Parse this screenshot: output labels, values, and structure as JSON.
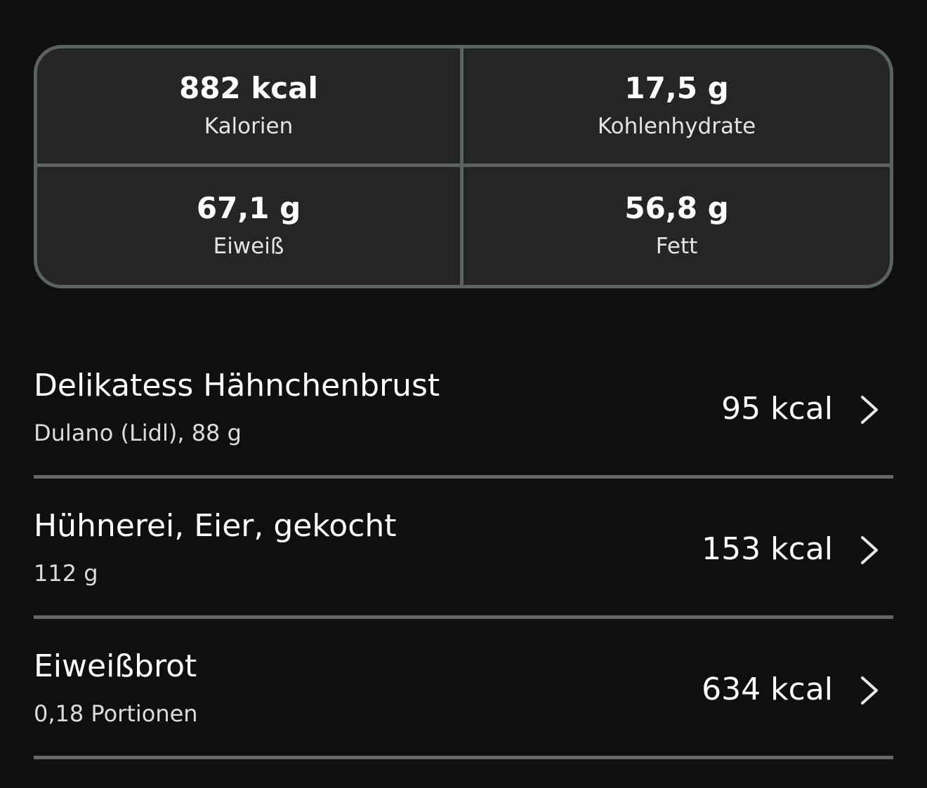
{
  "summary": [
    {
      "value": "882 kcal",
      "label": "Kalorien"
    },
    {
      "value": "17,5 g",
      "label": "Kohlenhydrate"
    },
    {
      "value": "67,1 g",
      "label": "Eiweiß"
    },
    {
      "value": "56,8 g",
      "label": "Fett"
    }
  ],
  "items": [
    {
      "name": "Delikatess Hähnchenbrust",
      "detail": "Dulano (Lidl), 88 g",
      "kcal": "95 kcal",
      "icon": "chevron-right-icon"
    },
    {
      "name": "Hühnerei, Eier, gekocht",
      "detail": "112 g",
      "kcal": "153 kcal",
      "icon": "chevron-right-icon"
    },
    {
      "name": "Eiweißbrot",
      "detail": "0,18 Portionen",
      "kcal": "634 kcal",
      "icon": "chevron-right-icon"
    }
  ],
  "colors": {
    "background": "#0f0f0f",
    "card": "#242626",
    "border": "#5c6262"
  }
}
